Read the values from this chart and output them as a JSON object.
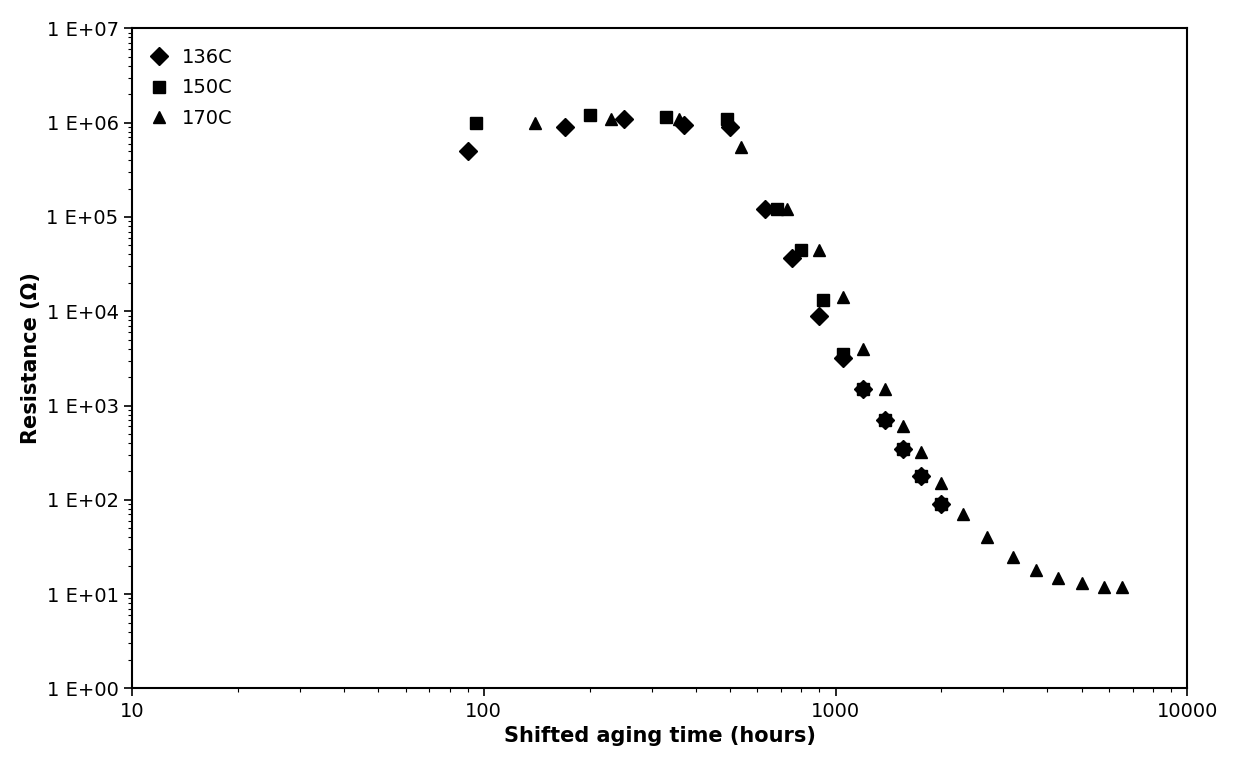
{
  "title": "",
  "xlabel": "Shifted aging time (hours)",
  "ylabel": "Resistance (Ω)",
  "xlim": [
    10,
    10000
  ],
  "ylim": [
    1.0,
    10000000.0
  ],
  "series_136C": {
    "label": "136C",
    "marker": "D",
    "x": [
      90,
      170,
      250,
      370,
      500,
      630,
      750,
      900,
      1050,
      1200,
      1380,
      1550,
      1750,
      2000
    ],
    "y": [
      500000.0,
      900000.0,
      1100000.0,
      950000.0,
      900000.0,
      120000.0,
      37000.0,
      9000.0,
      3200.0,
      1500.0,
      700.0,
      350.0,
      180.0,
      90.0
    ]
  },
  "series_150C": {
    "label": "150C",
    "marker": "s",
    "x": [
      95,
      200,
      330,
      490,
      680,
      800,
      920,
      1050,
      1200,
      1380,
      1550,
      1750,
      2000
    ],
    "y": [
      1000000.0,
      1200000.0,
      1150000.0,
      1100000.0,
      120000.0,
      45000.0,
      13000.0,
      3500.0,
      1500.0,
      700.0,
      350.0,
      180.0,
      90.0
    ]
  },
  "series_170C": {
    "label": "170C",
    "marker": "^",
    "x": [
      140,
      230,
      360,
      540,
      730,
      900,
      1050,
      1200,
      1380,
      1550,
      1750,
      2000,
      2300,
      2700,
      3200,
      3700,
      4300,
      5000,
      5800,
      6500
    ],
    "y": [
      1000000.0,
      1100000.0,
      1100000.0,
      550000.0,
      120000.0,
      45000.0,
      14000.0,
      4000.0,
      1500.0,
      600.0,
      320.0,
      150.0,
      70.0,
      40.0,
      25.0,
      18.0,
      15.0,
      13.0,
      12.0,
      12.0
    ]
  },
  "color": "#000000",
  "markersize": 9,
  "legend_loc": "upper left",
  "fontsize": 14,
  "label_fontsize": 15,
  "ytick_labels": [
    "1 E+00",
    "1 E+01",
    "1 E+02",
    "1 E+03",
    "1 E+04",
    "1 E+05",
    "1 E+06",
    "1 E+07"
  ],
  "xtick_labels": [
    "10",
    "100",
    "1000",
    "10000"
  ]
}
